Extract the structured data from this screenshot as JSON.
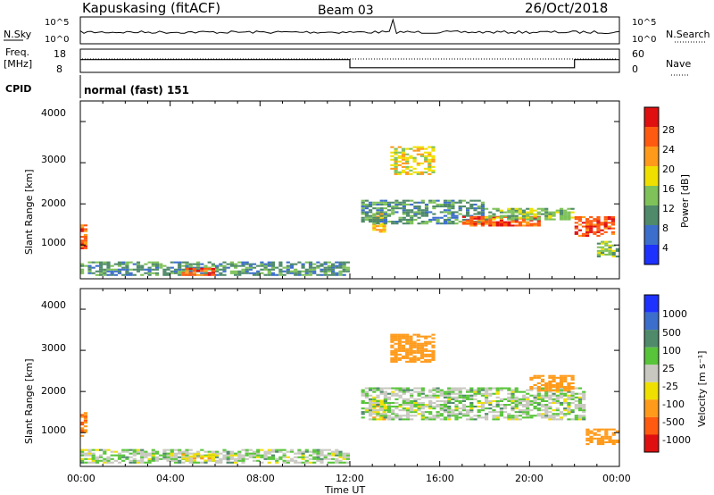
{
  "header": {
    "station": "Kapuskasing (fitACF)",
    "beam": "Beam 03",
    "date": "26/Oct/2018"
  },
  "noise_panel": {
    "left_label": "N.Sky",
    "right_label": "N.Search",
    "ticks_left": [
      "10^5",
      "10^0"
    ],
    "ticks_right": [
      "10^5",
      "10^0"
    ]
  },
  "freq_panel": {
    "left_label_1": "Freq.",
    "left_label_2": "[MHz]",
    "right_label": "Nave",
    "ticks_left": [
      "18",
      "8"
    ],
    "ticks_right": [
      "60",
      "0"
    ],
    "segments": [
      {
        "start_h": 0,
        "end_h": 12,
        "level": 0.55
      },
      {
        "start_h": 12,
        "end_h": 22,
        "level": 0.2
      },
      {
        "start_h": 22,
        "end_h": 24,
        "level": 0.55
      }
    ]
  },
  "cpid": {
    "label": "CPID",
    "value": "normal (fast) 151"
  },
  "x_axis": {
    "label": "Time UT",
    "ticks": [
      "00:00",
      "04:00",
      "08:00",
      "12:00",
      "16:00",
      "20:00",
      "00:00"
    ]
  },
  "power_panel": {
    "ylabel": "Slant Range [km]",
    "yticks": [
      "1000",
      "2000",
      "3000",
      "4000"
    ],
    "colorbar_label": "Power [dB]",
    "colorbar_ticks": [
      "4",
      "8",
      "12",
      "16",
      "20",
      "24",
      "28"
    ],
    "colorbar_colors": [
      "#1e32ff",
      "#3c6ecc",
      "#4f8a6a",
      "#7fc25a",
      "#f0e000",
      "#ff9a1a",
      "#ff5a10",
      "#e01010"
    ]
  },
  "velocity_panel": {
    "ylabel": "Slant Range [km]",
    "yticks": [
      "1000",
      "2000",
      "3000",
      "4000"
    ],
    "colorbar_label": "Velocity [m s⁻¹]",
    "colorbar_ticks": [
      "1000",
      "500",
      "100",
      "25",
      "-25",
      "-100",
      "-500",
      "-1000"
    ],
    "colorbar_colors": [
      "#1e32ff",
      "#3c6ecc",
      "#4f8a6a",
      "#58c43a",
      "#c8c8c0",
      "#f0e000",
      "#ff9a1a",
      "#ff5a10",
      "#e01010"
    ]
  },
  "chart_data": [
    {
      "type": "heatmap",
      "title": "Kapuskasing (fitACF)",
      "quantity": "Power [dB]",
      "xlabel": "Time UT",
      "ylabel": "Slant Range [km]",
      "xlim_hours": [
        0,
        24
      ],
      "ylim_km": [
        180,
        4500
      ],
      "colorbar_range_db": [
        0,
        30
      ],
      "regions": [
        {
          "t0": 0.0,
          "t1": 0.3,
          "r0": 900,
          "r1": 1500,
          "value": 26
        },
        {
          "t0": 0.0,
          "t1": 12.0,
          "r0": 250,
          "r1": 600,
          "value": 10
        },
        {
          "t0": 4.5,
          "t1": 6.0,
          "r0": 250,
          "r1": 450,
          "value": 26
        },
        {
          "t0": 13.0,
          "t1": 13.6,
          "r0": 1300,
          "r1": 1800,
          "value": 20
        },
        {
          "t0": 13.8,
          "t1": 15.8,
          "r0": 2700,
          "r1": 3400,
          "value": 18
        },
        {
          "t0": 12.5,
          "t1": 18.0,
          "r0": 1500,
          "r1": 2100,
          "value": 10
        },
        {
          "t0": 17.0,
          "t1": 20.5,
          "r0": 1450,
          "r1": 1700,
          "value": 26
        },
        {
          "t0": 18.0,
          "t1": 22.0,
          "r0": 1600,
          "r1": 1900,
          "value": 14
        },
        {
          "t0": 22.0,
          "t1": 23.8,
          "r0": 1200,
          "r1": 1700,
          "value": 27
        },
        {
          "t0": 23.0,
          "t1": 24.0,
          "r0": 700,
          "r1": 1100,
          "value": 14
        }
      ]
    },
    {
      "type": "heatmap",
      "quantity": "Velocity [m s⁻¹]",
      "xlabel": "Time UT",
      "ylabel": "Slant Range [km]",
      "xlim_hours": [
        0,
        24
      ],
      "ylim_km": [
        180,
        4500
      ],
      "colorbar_ticks": [
        1000,
        500,
        100,
        25,
        -25,
        -100,
        -500,
        -1000
      ],
      "regions": [
        {
          "t0": 0.0,
          "t1": 0.3,
          "r0": 900,
          "r1": 1500,
          "value": -500
        },
        {
          "t0": 0.0,
          "t1": 12.0,
          "r0": 250,
          "r1": 600,
          "value": 0
        },
        {
          "t0": 4.5,
          "t1": 6.0,
          "r0": 300,
          "r1": 500,
          "value": -80
        },
        {
          "t0": 13.0,
          "t1": 13.6,
          "r0": 1300,
          "r1": 1800,
          "value": -80
        },
        {
          "t0": 13.8,
          "t1": 15.8,
          "r0": 2700,
          "r1": 3400,
          "value": -300
        },
        {
          "t0": 12.5,
          "t1": 22.5,
          "r0": 1300,
          "r1": 2100,
          "value": 0
        },
        {
          "t0": 20.0,
          "t1": 22.0,
          "r0": 2000,
          "r1": 2400,
          "value": -400
        },
        {
          "t0": 22.5,
          "t1": 24.0,
          "r0": 700,
          "r1": 1100,
          "value": -200
        }
      ]
    }
  ]
}
